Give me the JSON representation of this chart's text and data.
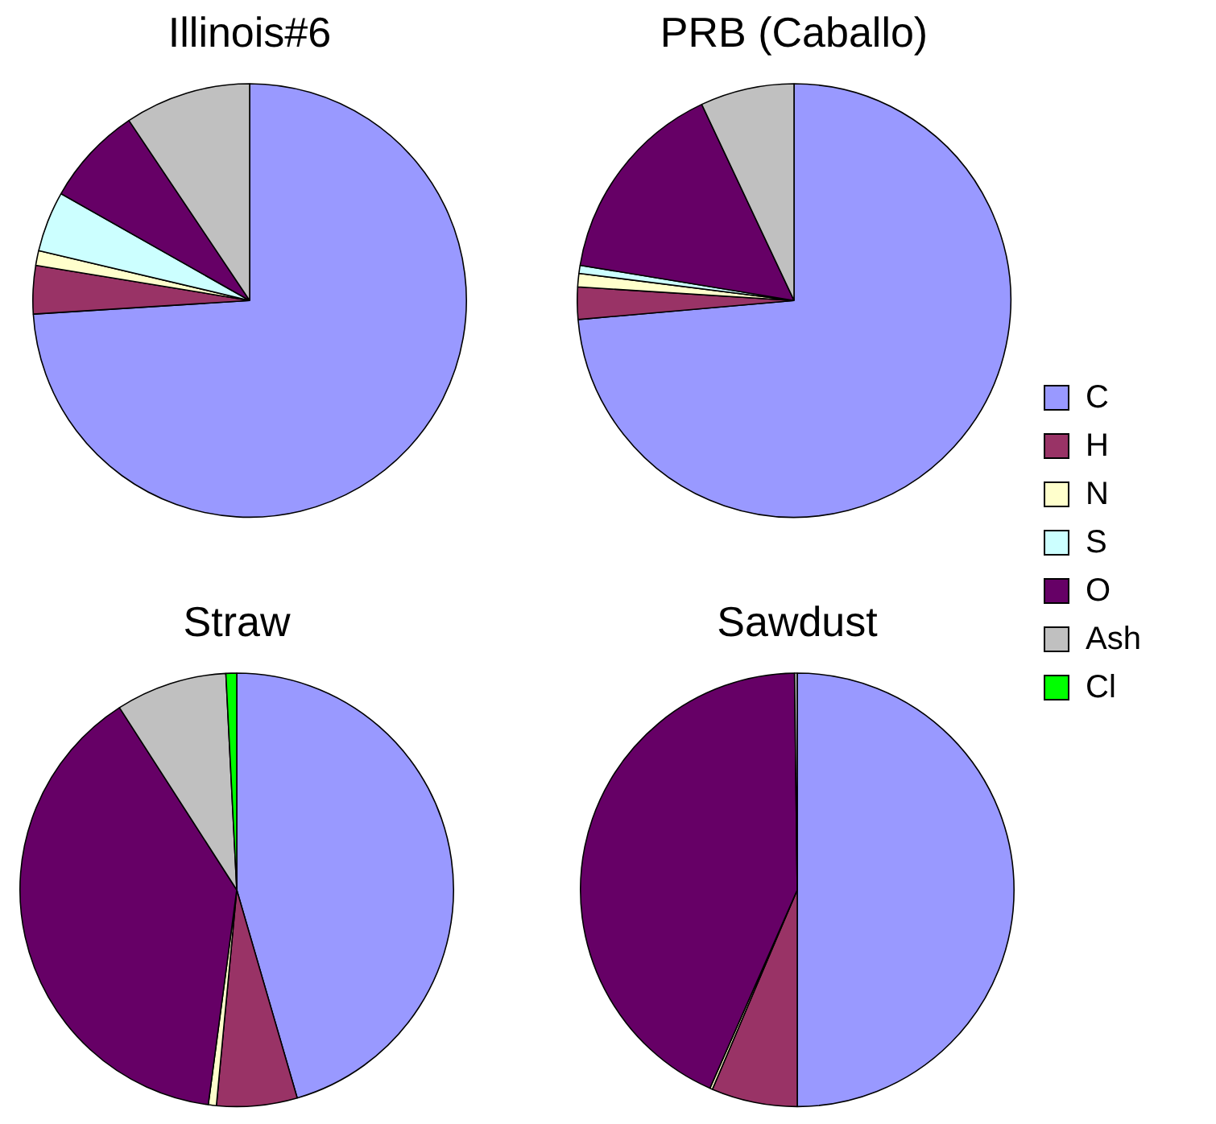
{
  "chart_data": [
    {
      "type": "pie",
      "title": "Illinois#6",
      "categories": [
        "C",
        "H",
        "N",
        "S",
        "O",
        "Ash",
        "Cl"
      ],
      "values": [
        74,
        3.6,
        1.1,
        4.5,
        7.4,
        9.4,
        0
      ],
      "colors": [
        "#9999ff",
        "#993366",
        "#ffffcc",
        "#ccffff",
        "#660066",
        "#c0c0c0",
        "#00ff00"
      ],
      "legend": "right"
    },
    {
      "type": "pie",
      "title": "PRB (Caballo)",
      "values": [
        73.6,
        2.4,
        1,
        0.6,
        15.4,
        7,
        0
      ],
      "colors": [
        "#9999ff",
        "#993366",
        "#ffffcc",
        "#ccffff",
        "#660066",
        "#c0c0c0",
        "#00ff00"
      ]
    },
    {
      "type": "pie",
      "title": "Straw",
      "values": [
        45.5,
        6,
        0.6,
        0,
        38.8,
        8.3,
        0.8
      ],
      "colors": [
        "#9999ff",
        "#993366",
        "#ffffcc",
        "#ccffff",
        "#660066",
        "#c0c0c0",
        "#00ff00"
      ]
    },
    {
      "type": "pie",
      "title": "Sawdust",
      "values": [
        50,
        6.4,
        0.2,
        0,
        43.2,
        0.2,
        0
      ],
      "colors": [
        "#9999ff",
        "#993366",
        "#ffffcc",
        "#ccffff",
        "#660066",
        "#c0c0c0",
        "#00ff00"
      ]
    }
  ]
}
